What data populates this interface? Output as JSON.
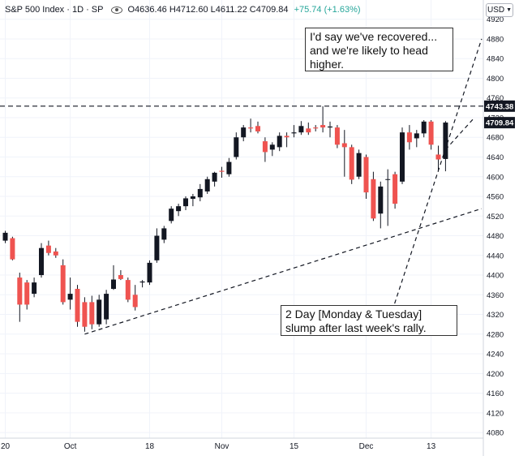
{
  "header": {
    "symbol": "S&P 500 Index · 1D · SP",
    "open": "O4636.46",
    "high": "H4712.60",
    "low": "L4611.22",
    "close": "C4709.84",
    "change": "+75.74 (+1.63%)"
  },
  "currency": "USD",
  "annotations": {
    "top": "I'd say we've recovered... and we're likely to head higher.",
    "bottom": "2 Day [Monday & Tuesday] slump after last week's rally."
  },
  "colors": {
    "up": "#131722",
    "down": "#ef5350",
    "wick": "#131722"
  },
  "chart_data": {
    "type": "candlestick",
    "title": "S&P 500 Index · 1D · SP",
    "y_ticks": [
      4080,
      4120,
      4160,
      4200,
      4240,
      4280,
      4320,
      4360,
      4400,
      4440,
      4480,
      4520,
      4560,
      4600,
      4640,
      4680,
      4720,
      4760,
      4800,
      4840,
      4880,
      4920
    ],
    "ylim": [
      4062,
      4936
    ],
    "x_tick_labels": [
      {
        "label": "20",
        "index": 0
      },
      {
        "label": "Oct",
        "index": 9
      },
      {
        "label": "18",
        "index": 20
      },
      {
        "label": "Nov",
        "index": 30
      },
      {
        "label": "15",
        "index": 40
      },
      {
        "label": "Dec",
        "index": 50
      },
      {
        "label": "13",
        "index": 59
      }
    ],
    "price_labels": [
      {
        "value": 4743.38,
        "label": "4743.38",
        "style": "line"
      },
      {
        "value": 4709.84,
        "label": "4709.84",
        "style": "last"
      }
    ],
    "horizontal_line": 4743.38,
    "trendlines": [
      {
        "from": [
          11,
          4280
        ],
        "to": [
          66,
          4535
        ]
      },
      {
        "from": [
          53,
          4300
        ],
        "to": [
          66,
          4880
        ]
      },
      {
        "from": [
          61,
          4655
        ],
        "to": [
          65,
          4720
        ]
      }
    ],
    "candles": [
      {
        "i": 0,
        "o": 4470,
        "h": 4490,
        "l": 4465,
        "c": 4486
      },
      {
        "i": 1,
        "o": 4475,
        "h": 4478,
        "l": 4430,
        "c": 4432
      },
      {
        "i": 2,
        "o": 4395,
        "h": 4405,
        "l": 4305,
        "c": 4340
      },
      {
        "i": 3,
        "o": 4385,
        "h": 4390,
        "l": 4330,
        "c": 4340
      },
      {
        "i": 4,
        "o": 4362,
        "h": 4395,
        "l": 4355,
        "c": 4385
      },
      {
        "i": 5,
        "o": 4400,
        "h": 4465,
        "l": 4395,
        "c": 4455
      },
      {
        "i": 6,
        "o": 4460,
        "h": 4470,
        "l": 4440,
        "c": 4445
      },
      {
        "i": 7,
        "o": 4448,
        "h": 4455,
        "l": 4435,
        "c": 4440
      },
      {
        "i": 8,
        "o": 4420,
        "h": 4432,
        "l": 4340,
        "c": 4345
      },
      {
        "i": 9,
        "o": 4350,
        "h": 4395,
        "l": 4330,
        "c": 4362
      },
      {
        "i": 10,
        "o": 4372,
        "h": 4380,
        "l": 4295,
        "c": 4305
      },
      {
        "i": 11,
        "o": 4345,
        "h": 4355,
        "l": 4285,
        "c": 4295
      },
      {
        "i": 12,
        "o": 4345,
        "h": 4358,
        "l": 4290,
        "c": 4300
      },
      {
        "i": 13,
        "o": 4300,
        "h": 4360,
        "l": 4295,
        "c": 4350
      },
      {
        "i": 14,
        "o": 4310,
        "h": 4370,
        "l": 4300,
        "c": 4362
      },
      {
        "i": 15,
        "o": 4372,
        "h": 4420,
        "l": 4370,
        "c": 4391
      },
      {
        "i": 16,
        "o": 4400,
        "h": 4410,
        "l": 4390,
        "c": 4392
      },
      {
        "i": 17,
        "o": 4390,
        "h": 4395,
        "l": 4345,
        "c": 4350
      },
      {
        "i": 18,
        "o": 4360,
        "h": 4380,
        "l": 4328,
        "c": 4335
      },
      {
        "i": 19,
        "o": 4385,
        "h": 4390,
        "l": 4375,
        "c": 4387
      },
      {
        "i": 20,
        "o": 4385,
        "h": 4430,
        "l": 4380,
        "c": 4425
      },
      {
        "i": 21,
        "o": 4430,
        "h": 4495,
        "l": 4425,
        "c": 4480
      },
      {
        "i": 22,
        "o": 4472,
        "h": 4500,
        "l": 4465,
        "c": 4495
      },
      {
        "i": 23,
        "o": 4510,
        "h": 4540,
        "l": 4505,
        "c": 4535
      },
      {
        "i": 24,
        "o": 4530,
        "h": 4545,
        "l": 4520,
        "c": 4540
      },
      {
        "i": 25,
        "o": 4540,
        "h": 4560,
        "l": 4532,
        "c": 4556
      },
      {
        "i": 26,
        "o": 4555,
        "h": 4565,
        "l": 4540,
        "c": 4560
      },
      {
        "i": 27,
        "o": 4558,
        "h": 4585,
        "l": 4550,
        "c": 4575
      },
      {
        "i": 28,
        "o": 4570,
        "h": 4600,
        "l": 4565,
        "c": 4595
      },
      {
        "i": 29,
        "o": 4590,
        "h": 4610,
        "l": 4580,
        "c": 4608
      },
      {
        "i": 30,
        "o": 4612,
        "h": 4620,
        "l": 4598,
        "c": 4610
      },
      {
        "i": 31,
        "o": 4605,
        "h": 4638,
        "l": 4600,
        "c": 4630
      },
      {
        "i": 32,
        "o": 4640,
        "h": 4690,
        "l": 4635,
        "c": 4680
      },
      {
        "i": 33,
        "o": 4680,
        "h": 4705,
        "l": 4672,
        "c": 4700
      },
      {
        "i": 34,
        "o": 4700,
        "h": 4718,
        "l": 4690,
        "c": 4698
      },
      {
        "i": 35,
        "o": 4703,
        "h": 4712,
        "l": 4688,
        "c": 4692
      },
      {
        "i": 36,
        "o": 4672,
        "h": 4680,
        "l": 4630,
        "c": 4650
      },
      {
        "i": 37,
        "o": 4655,
        "h": 4670,
        "l": 4642,
        "c": 4665
      },
      {
        "i": 38,
        "o": 4660,
        "h": 4690,
        "l": 4652,
        "c": 4683
      },
      {
        "i": 39,
        "o": 4683,
        "h": 4690,
        "l": 4660,
        "c": 4680
      },
      {
        "i": 40,
        "o": 4688,
        "h": 4705,
        "l": 4680,
        "c": 4690
      },
      {
        "i": 41,
        "o": 4690,
        "h": 4713,
        "l": 4685,
        "c": 4703
      },
      {
        "i": 42,
        "o": 4698,
        "h": 4710,
        "l": 4685,
        "c": 4690
      },
      {
        "i": 43,
        "o": 4700,
        "h": 4705,
        "l": 4692,
        "c": 4698
      },
      {
        "i": 44,
        "o": 4705,
        "h": 4743,
        "l": 4690,
        "c": 4700
      },
      {
        "i": 45,
        "o": 4700,
        "h": 4712,
        "l": 4680,
        "c": 4702
      },
      {
        "i": 46,
        "o": 4700,
        "h": 4705,
        "l": 4658,
        "c": 4665
      },
      {
        "i": 47,
        "o": 4668,
        "h": 4695,
        "l": 4600,
        "c": 4660
      },
      {
        "i": 48,
        "o": 4660,
        "h": 4665,
        "l": 4585,
        "c": 4594
      },
      {
        "i": 49,
        "o": 4600,
        "h": 4655,
        "l": 4595,
        "c": 4648
      },
      {
        "i": 50,
        "o": 4640,
        "h": 4645,
        "l": 4555,
        "c": 4568
      },
      {
        "i": 51,
        "o": 4595,
        "h": 4610,
        "l": 4510,
        "c": 4515
      },
      {
        "i": 52,
        "o": 4525,
        "h": 4590,
        "l": 4495,
        "c": 4580
      },
      {
        "i": 53,
        "o": 4595,
        "h": 4615,
        "l": 4500,
        "c": 4595
      },
      {
        "i": 54,
        "o": 4605,
        "h": 4610,
        "l": 4535,
        "c": 4545
      },
      {
        "i": 55,
        "o": 4590,
        "h": 4700,
        "l": 4585,
        "c": 4690
      },
      {
        "i": 56,
        "o": 4690,
        "h": 4705,
        "l": 4655,
        "c": 4670
      },
      {
        "i": 57,
        "o": 4678,
        "h": 4695,
        "l": 4660,
        "c": 4688
      },
      {
        "i": 58,
        "o": 4688,
        "h": 4715,
        "l": 4680,
        "c": 4712
      },
      {
        "i": 59,
        "o": 4712,
        "h": 4715,
        "l": 4655,
        "c": 4665
      },
      {
        "i": 60,
        "o": 4645,
        "h": 4663,
        "l": 4610,
        "c": 4635
      },
      {
        "i": 61,
        "o": 4636,
        "h": 4713,
        "l": 4611,
        "c": 4710
      }
    ]
  }
}
